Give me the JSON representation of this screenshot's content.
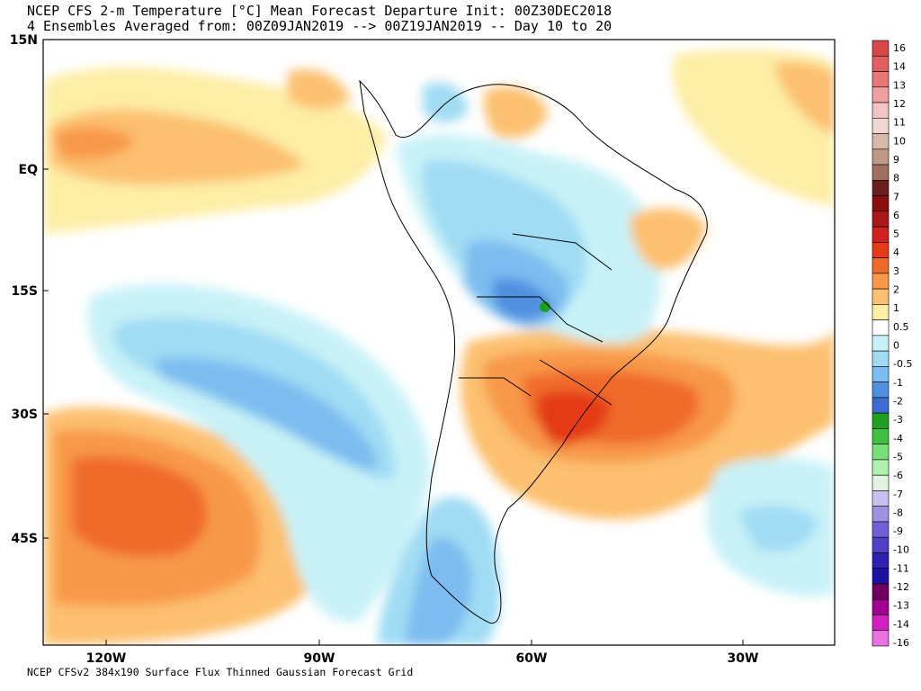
{
  "header": {
    "title_line1": "NCEP CFS 2-m Temperature [°C] Mean Forecast Departure Init: 00Z30DEC2018",
    "title_line2": "4 Ensembles Averaged from: 00Z09JAN2019 --> 00Z19JAN2019 -- Day 10 to 20"
  },
  "footer": {
    "caption": "NCEP CFSv2 384x190 Surface Flux Thinned Gaussian Forecast Grid"
  },
  "map": {
    "region": "South America and surrounding oceans",
    "latitude_labels": [
      "15N",
      "EQ",
      "15S",
      "30S",
      "45S"
    ],
    "longitude_labels": [
      "120W",
      "90W",
      "60W",
      "30W"
    ],
    "colors": {
      "ocean_background": "#ffffff",
      "border_color": "#000000"
    }
  },
  "colorbar": {
    "labels": [
      "16",
      "14",
      "13",
      "12",
      "11",
      "10",
      "9",
      "8",
      "7",
      "6",
      "5",
      "4",
      "3",
      "2",
      "1",
      "0.5",
      "0",
      "-0.5",
      "-1",
      "-2",
      "-3",
      "-4",
      "-5",
      "-6",
      "-7",
      "-8",
      "-9",
      "-10",
      "-11",
      "-12",
      "-13",
      "-14",
      "-16"
    ],
    "colors": [
      "#d84848",
      "#e06060",
      "#e87878",
      "#f0a0a0",
      "#f4c4c4",
      "#f0d8d0",
      "#d8b8a8",
      "#c09888",
      "#a07060",
      "#6a1e1e",
      "#8a1010",
      "#aa1818",
      "#d02020",
      "#e43a16",
      "#f06a2a",
      "#f89848",
      "#fcc070",
      "#fdeea6",
      "#ffffff",
      "#c8f2f8",
      "#a0dcf4",
      "#7cbcf0",
      "#5090e0",
      "#3c6cd0",
      "#20a020",
      "#40c040",
      "#78e078",
      "#b0f0b0",
      "#e0f4e0",
      "#c8c0f0",
      "#a090e0",
      "#7060d8",
      "#5040c8",
      "#3020b0",
      "#2010a0",
      "#700060",
      "#a00090",
      "#d020c0",
      "#e870e0"
    ]
  }
}
